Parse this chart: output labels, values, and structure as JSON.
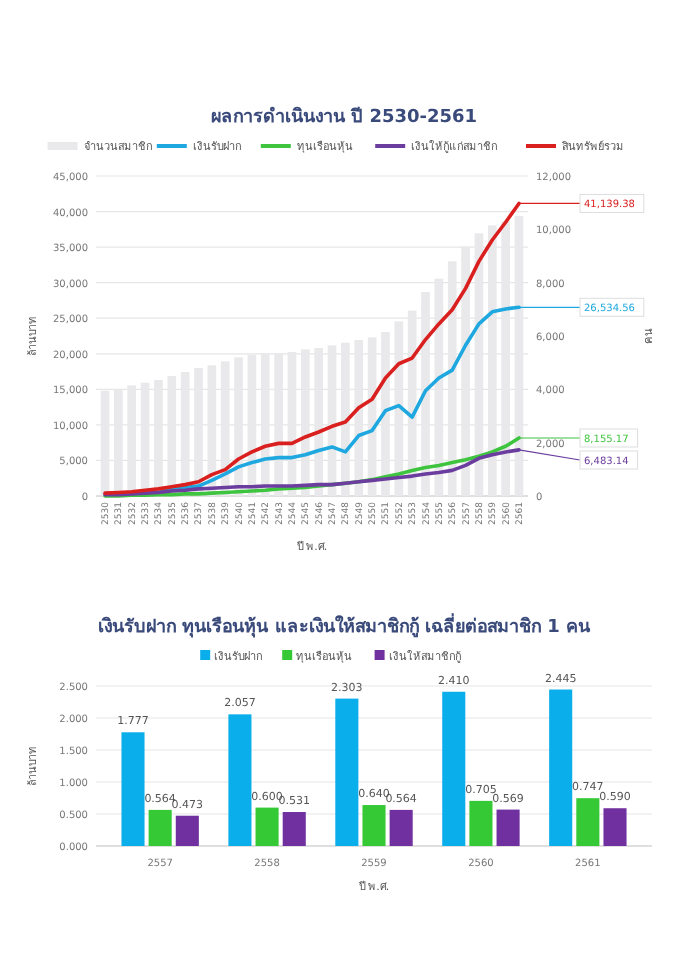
{
  "chart_data": [
    {
      "type": "line",
      "title": "ผลการดำเนินงาน ปี 2530-2561",
      "xlabel": "ปี พ.ศ.",
      "ylabel": "ล้านบาท",
      "y2label": "คน",
      "legend": "top",
      "grid": "y",
      "categories": [
        "2530",
        "2531",
        "2532",
        "2533",
        "2534",
        "2535",
        "2536",
        "2537",
        "2538",
        "2539",
        "2540",
        "2541",
        "2542",
        "2543",
        "2544",
        "2545",
        "2546",
        "2547",
        "2548",
        "2549",
        "2550",
        "2551",
        "2552",
        "2553",
        "2554",
        "2555",
        "2556",
        "2557",
        "2558",
        "2559",
        "2560",
        "2561"
      ],
      "ylim": [
        0,
        45000
      ],
      "yticks": [
        0,
        {
          "value": 5000,
          "label": "5,000"
        },
        {
          "value": 10000,
          "label": "10,000"
        },
        {
          "value": 15000,
          "label": "15,000"
        },
        {
          "value": 20000,
          "label": "20,000"
        },
        {
          "value": 25000,
          "label": "25,000"
        },
        {
          "value": 30000,
          "label": "30,000"
        },
        {
          "value": 35000,
          "label": "35,000"
        },
        {
          "value": 40000,
          "label": "40,000"
        },
        {
          "value": 45000,
          "label": "45,000"
        }
      ],
      "y2lim": [
        0,
        12000
      ],
      "y2ticks": [
        0,
        {
          "value": 2000,
          "label": "2,000"
        },
        {
          "value": 4000,
          "label": "4,000"
        },
        {
          "value": 6000,
          "label": "6,000"
        },
        {
          "value": 8000,
          "label": "8,000"
        },
        {
          "value": 10000,
          "label": "10,000"
        },
        {
          "value": 12000,
          "label": "12,000"
        }
      ],
      "series": [
        {
          "name": "จำนวนสมาชิก",
          "type": "bar",
          "axis": "y2",
          "color": "#e9e9eb",
          "values": [
            3950,
            4000,
            4150,
            4250,
            4350,
            4500,
            4650,
            4800,
            4900,
            5050,
            5200,
            5300,
            5350,
            5350,
            5400,
            5500,
            5550,
            5650,
            5750,
            5850,
            5950,
            6150,
            6550,
            6950,
            7650,
            8150,
            8800,
            9350,
            9850,
            10150,
            10300,
            10500
          ]
        },
        {
          "name": "เงินรับฝาก",
          "color": "#1fa8df",
          "values": [
            null,
            null,
            null,
            null,
            500,
            1000,
            1200,
            1400,
            2200,
            3100,
            4100,
            4700,
            5200,
            5400,
            5400,
            5800,
            6400,
            6900,
            6200,
            8500,
            9200,
            12000,
            12700,
            11100,
            14800,
            16600,
            17700,
            21200,
            24200,
            25900,
            26300,
            26534.56
          ]
        },
        {
          "name": "ทุนเรือนหุ้น",
          "color": "#3fc43f",
          "values": [
            0,
            0,
            100,
            100,
            200,
            200,
            300,
            300,
            400,
            500,
            600,
            700,
            800,
            1000,
            1100,
            1200,
            1400,
            1600,
            1800,
            2000,
            2300,
            2700,
            3100,
            3600,
            4000,
            4300,
            4700,
            5100,
            5600,
            6200,
            7000,
            8155.17
          ]
        },
        {
          "name": "เงินให้กู้แก่สมาชิก",
          "color": "#6b3d9e",
          "values": [
            200,
            200,
            300,
            400,
            500,
            700,
            800,
            1000,
            1100,
            1200,
            1300,
            1300,
            1400,
            1400,
            1400,
            1500,
            1600,
            1600,
            1800,
            2000,
            2200,
            2400,
            2600,
            2800,
            3100,
            3300,
            3600,
            4300,
            5300,
            5800,
            6200,
            6483.14
          ]
        },
        {
          "name": "สินทรัพย์รวม",
          "color": "#d9201f",
          "values": [
            400,
            500,
            600,
            800,
            1000,
            1300,
            1600,
            2000,
            3000,
            3700,
            5200,
            6200,
            7000,
            7400,
            7400,
            8300,
            9000,
            9800,
            10400,
            12400,
            13600,
            16600,
            18600,
            19400,
            22000,
            24200,
            26200,
            29200,
            33000,
            36000,
            38500,
            41139.38
          ]
        }
      ],
      "annotations": [
        {
          "text": "41,139.38",
          "x": "2561",
          "y": 41139.38
        },
        {
          "text": "26,534.56",
          "x": "2561",
          "y": 26534.56
        },
        {
          "text": "8,155.17",
          "x": "2561",
          "y": 8155.17
        },
        {
          "text": "6,483.14",
          "x": "2561",
          "y": 6483.14
        }
      ]
    },
    {
      "type": "bar",
      "title": "เงินรับฝาก ทุนเรือนหุ้น และเงินให้สมาชิกกู้ เฉลี่ยต่อสมาชิก 1 คน",
      "xlabel": "ปี พ.ศ.",
      "ylabel": "ล้านบาท",
      "legend": "top",
      "grid": "y",
      "categories": [
        "2557",
        "2558",
        "2559",
        "2560",
        "2561"
      ],
      "ylim": [
        0,
        2.5
      ],
      "yticks": [
        {
          "value": 0,
          "label": "0.000"
        },
        {
          "value": 0.5,
          "label": "0.500"
        },
        {
          "value": 1,
          "label": "1.000"
        },
        {
          "value": 1.5,
          "label": "1.500"
        },
        {
          "value": 2,
          "label": "2.000"
        },
        {
          "value": 2.5,
          "label": "2.500"
        }
      ],
      "series": [
        {
          "name": "เงินรับฝาก",
          "color": "#0aaeea",
          "values": [
            1.777,
            2.057,
            2.303,
            2.41,
            2.445
          ],
          "value_labels": [
            "1.777",
            "2.057",
            "2.303",
            "2.410",
            "2.445"
          ]
        },
        {
          "name": "ทุนเรือนหุ้น",
          "color": "#35c935",
          "values": [
            0.564,
            0.6,
            0.64,
            0.705,
            0.747
          ],
          "value_labels": [
            "0.564",
            "0.600",
            "0.640",
            "0.705",
            "0.747"
          ]
        },
        {
          "name": "เงินให้สมาชิกกู้",
          "color": "#7030a0",
          "values": [
            0.473,
            0.531,
            0.564,
            0.569,
            0.59
          ],
          "value_labels": [
            "0.473",
            "0.531",
            "0.564",
            "0.569",
            "0.590"
          ]
        }
      ]
    }
  ]
}
